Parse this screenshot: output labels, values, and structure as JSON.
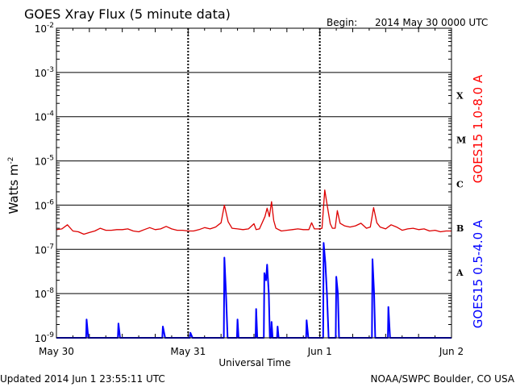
{
  "header": {
    "title": "GOES Xray Flux (5 minute data)",
    "begin_label": "Begin:",
    "begin_value": "2014 May 30 0000 UTC"
  },
  "footer": {
    "updated": "Updated 2014 Jun  1 23:55:11 UTC",
    "credit": "NOAA/SWPC Boulder, CO USA"
  },
  "chart_data": {
    "type": "line",
    "title": "GOES Xray Flux (5 minute data)",
    "xlabel": "Universal Time",
    "ylabel": "Watts m",
    "ylabel_sup": "-2",
    "yscale": "log",
    "ylim": [
      1e-09,
      0.01
    ],
    "yticks": [
      {
        "value": 0.01,
        "base": "10",
        "exp": "-2"
      },
      {
        "value": 0.001,
        "base": "10",
        "exp": "-3"
      },
      {
        "value": 0.0001,
        "base": "10",
        "exp": "-4"
      },
      {
        "value": 1e-05,
        "base": "10",
        "exp": "-5"
      },
      {
        "value": 1e-06,
        "base": "10",
        "exp": "-6"
      },
      {
        "value": 1e-07,
        "base": "10",
        "exp": "-7"
      },
      {
        "value": 1e-08,
        "base": "10",
        "exp": "-8"
      },
      {
        "value": 1e-09,
        "base": "10",
        "exp": "-9"
      }
    ],
    "xlim": [
      0,
      72
    ],
    "xticks": [
      {
        "value": 0,
        "label": "May 30"
      },
      {
        "value": 24,
        "label": "May 31"
      },
      {
        "value": 48,
        "label": "Jun 1"
      },
      {
        "value": 72,
        "label": "Jun 2"
      }
    ],
    "classes": [
      {
        "label": "X",
        "value": 0.0003
      },
      {
        "label": "M",
        "value": 3e-05
      },
      {
        "label": "C",
        "value": 3e-06
      },
      {
        "label": "B",
        "value": 3e-07
      },
      {
        "label": "A",
        "value": 3e-08
      }
    ],
    "grid": true,
    "series": [
      {
        "name": "GOES15 1.0-8.0 A",
        "color": "#dd0000",
        "points": [
          [
            0,
            2.8e-07
          ],
          [
            1,
            2.9e-07
          ],
          [
            2,
            3.6e-07
          ],
          [
            3,
            2.6e-07
          ],
          [
            4,
            2.5e-07
          ],
          [
            5,
            2.2e-07
          ],
          [
            6,
            2.4e-07
          ],
          [
            7,
            2.6e-07
          ],
          [
            8,
            3e-07
          ],
          [
            9,
            2.7e-07
          ],
          [
            10,
            2.7e-07
          ],
          [
            11,
            2.8e-07
          ],
          [
            12,
            2.8e-07
          ],
          [
            13,
            2.9e-07
          ],
          [
            14,
            2.6e-07
          ],
          [
            15,
            2.5e-07
          ],
          [
            16,
            2.8e-07
          ],
          [
            17,
            3.1e-07
          ],
          [
            18,
            2.8e-07
          ],
          [
            19,
            2.9e-07
          ],
          [
            20,
            3.3e-07
          ],
          [
            21,
            2.9e-07
          ],
          [
            22,
            2.7e-07
          ],
          [
            23,
            2.7e-07
          ],
          [
            24,
            2.6e-07
          ],
          [
            25,
            2.6e-07
          ],
          [
            26,
            2.8e-07
          ],
          [
            27,
            3.1e-07
          ],
          [
            28,
            2.9e-07
          ],
          [
            29,
            3.2e-07
          ],
          [
            30,
            4e-07
          ],
          [
            30.6,
            1e-06
          ],
          [
            31.3,
            4.2e-07
          ],
          [
            32,
            3e-07
          ],
          [
            33,
            2.9e-07
          ],
          [
            34,
            2.8e-07
          ],
          [
            35,
            2.9e-07
          ],
          [
            36,
            3.8e-07
          ],
          [
            36.4,
            2.8e-07
          ],
          [
            37,
            2.9e-07
          ],
          [
            38,
            5.5e-07
          ],
          [
            38.4,
            8.5e-07
          ],
          [
            38.8,
            5.5e-07
          ],
          [
            39.2,
            1.2e-06
          ],
          [
            39.6,
            4.5e-07
          ],
          [
            40,
            3e-07
          ],
          [
            41,
            2.6e-07
          ],
          [
            42,
            2.7e-07
          ],
          [
            43,
            2.8e-07
          ],
          [
            44,
            2.9e-07
          ],
          [
            45,
            2.8e-07
          ],
          [
            46,
            2.8e-07
          ],
          [
            46.5,
            4e-07
          ],
          [
            47,
            2.9e-07
          ],
          [
            48,
            2.9e-07
          ],
          [
            48.4,
            3e-07
          ],
          [
            48.9,
            2.2e-06
          ],
          [
            49.4,
            9e-07
          ],
          [
            49.9,
            3.8e-07
          ],
          [
            50.3,
            3e-07
          ],
          [
            50.8,
            3e-07
          ],
          [
            51.2,
            7.5e-07
          ],
          [
            51.7,
            3.9e-07
          ],
          [
            52.5,
            3.4e-07
          ],
          [
            53.5,
            3.2e-07
          ],
          [
            54.5,
            3.4e-07
          ],
          [
            55.5,
            3.9e-07
          ],
          [
            56.5,
            3e-07
          ],
          [
            57.2,
            3.2e-07
          ],
          [
            57.8,
            8.8e-07
          ],
          [
            58.4,
            4e-07
          ],
          [
            59,
            3.2e-07
          ],
          [
            60,
            2.9e-07
          ],
          [
            61,
            3.6e-07
          ],
          [
            62,
            3.2e-07
          ],
          [
            63,
            2.7e-07
          ],
          [
            64,
            2.9e-07
          ],
          [
            65,
            3e-07
          ],
          [
            66,
            2.8e-07
          ],
          [
            67,
            2.9e-07
          ],
          [
            68,
            2.6e-07
          ],
          [
            69,
            2.7e-07
          ],
          [
            70,
            2.5e-07
          ],
          [
            71,
            2.6e-07
          ],
          [
            72,
            2.6e-07
          ]
        ]
      },
      {
        "name": "GOES15 0.5-4.0 A",
        "color": "#0000ff",
        "points": [
          [
            0,
            1e-09
          ],
          [
            5.4,
            1e-09
          ],
          [
            5.5,
            2.6e-09
          ],
          [
            5.8,
            1e-09
          ],
          [
            11.2,
            1e-09
          ],
          [
            11.3,
            2.1e-09
          ],
          [
            11.6,
            1e-09
          ],
          [
            19.3,
            1e-09
          ],
          [
            19.4,
            1.8e-09
          ],
          [
            19.8,
            1e-09
          ],
          [
            24.3,
            1e-09
          ],
          [
            24.4,
            1.3e-09
          ],
          [
            24.8,
            1e-09
          ],
          [
            30.5,
            1e-09
          ],
          [
            30.6,
            6.5e-08
          ],
          [
            30.9,
            1e-08
          ],
          [
            31.2,
            1e-09
          ],
          [
            32.9,
            1e-09
          ],
          [
            33,
            2.6e-09
          ],
          [
            33.2,
            1e-09
          ],
          [
            36.3,
            1e-09
          ],
          [
            36.4,
            4.5e-09
          ],
          [
            36.6,
            1e-09
          ],
          [
            37.8,
            1e-09
          ],
          [
            37.9,
            2.9e-08
          ],
          [
            38.2,
            2e-08
          ],
          [
            38.4,
            4.5e-08
          ],
          [
            38.7,
            1e-08
          ],
          [
            38.9,
            1e-09
          ],
          [
            39.1,
            1e-09
          ],
          [
            39.2,
            2.3e-09
          ],
          [
            39.4,
            1e-09
          ],
          [
            40.2,
            1e-09
          ],
          [
            40.3,
            1.8e-09
          ],
          [
            40.5,
            1e-09
          ],
          [
            45.5,
            1e-09
          ],
          [
            45.6,
            2.5e-09
          ],
          [
            45.9,
            1e-09
          ],
          [
            48.6,
            1e-09
          ],
          [
            48.7,
            1.4e-07
          ],
          [
            49.0,
            5e-08
          ],
          [
            49.3,
            1e-08
          ],
          [
            49.6,
            1e-09
          ],
          [
            50.9,
            1e-09
          ],
          [
            51.0,
            2.4e-08
          ],
          [
            51.3,
            1e-08
          ],
          [
            51.5,
            1e-09
          ],
          [
            57.5,
            1e-09
          ],
          [
            57.6,
            6e-08
          ],
          [
            57.9,
            1e-08
          ],
          [
            58.1,
            1e-09
          ],
          [
            60.4,
            1e-09
          ],
          [
            60.5,
            5e-09
          ],
          [
            60.8,
            1e-09
          ],
          [
            72,
            1e-09
          ]
        ]
      }
    ]
  }
}
